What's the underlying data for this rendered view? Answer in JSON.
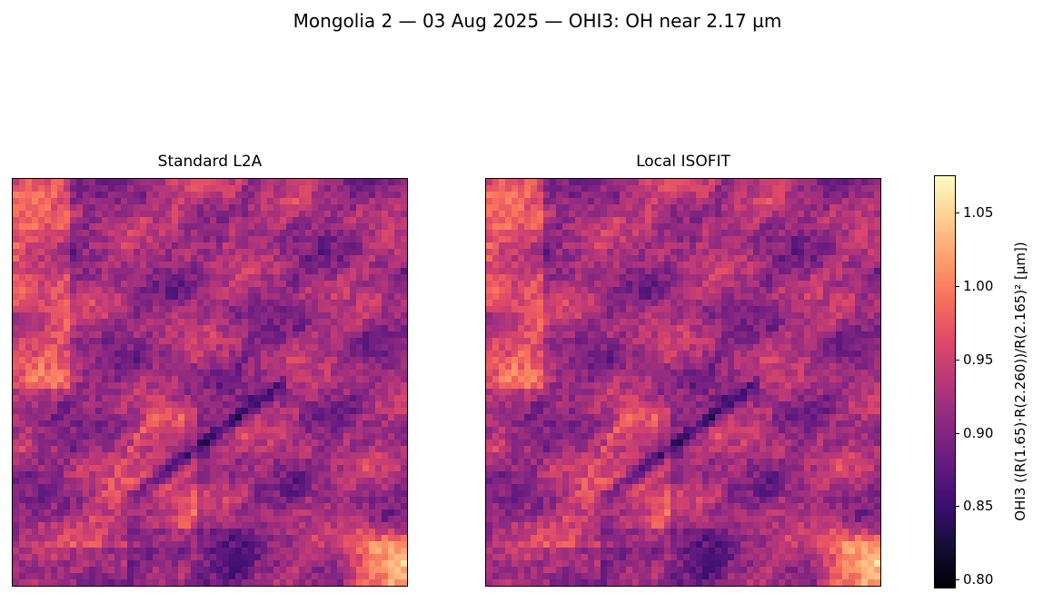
{
  "figure": {
    "suptitle": "Mongolia 2 — 03 Aug 2025 — OHI3: OH near 2.17 µm"
  },
  "chart_data": {
    "type": "heatmap",
    "colormap": "magma",
    "panels": [
      {
        "title": "Standard L2A"
      },
      {
        "title": "Local ISOFIT"
      }
    ],
    "colorbar": {
      "label": "OHI3  ((R(1.65)·R(2.260))/R(2.165)²  [µm])",
      "vmin": 0.795,
      "vmax": 1.075,
      "ticks": [
        0.8,
        0.85,
        0.9,
        0.95,
        1.0,
        1.05
      ],
      "tick_labels": [
        "0.80",
        "0.85",
        "0.90",
        "0.95",
        "1.00",
        "1.05"
      ]
    },
    "x_ticks": [],
    "y_ticks": []
  }
}
